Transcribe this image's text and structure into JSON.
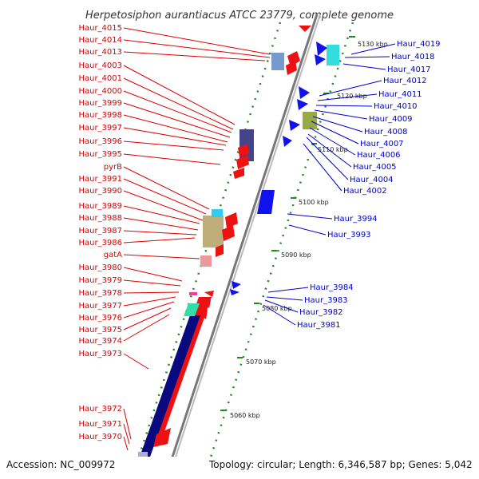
{
  "title": "Herpetosiphon aurantiacus ATCC 23779, complete genome",
  "accession": "Accession: NC_009972",
  "topology": "Topology: circular; Length: 6,346,587 bp; Genes: 5,042",
  "colors": {
    "reverse_label": "#dd0000",
    "forward_label": "#0000cc",
    "reverse_arrow": "#ee1111",
    "forward_arrow": "#1111ee",
    "ticks": "#228822",
    "backbone": "#888888"
  },
  "kbp_markers": [
    "5130 kbp",
    "5120 kbp",
    "5110 kbp",
    "5100 kbp",
    "5090 kbp",
    "5080 kbp",
    "5070 kbp",
    "5060 kbp"
  ],
  "left_labels": [
    "Haur_4015",
    "Haur_4014",
    "Haur_4013",
    "Haur_4003",
    "Haur_4001",
    "Haur_4000",
    "Haur_3999",
    "Haur_3998",
    "Haur_3997",
    "Haur_3996",
    "Haur_3995",
    "pyrB",
    "Haur_3991",
    "Haur_3990",
    "Haur_3989",
    "Haur_3988",
    "Haur_3987",
    "Haur_3986",
    "gatA",
    "Haur_3980",
    "Haur_3979",
    "Haur_3978",
    "Haur_3977",
    "Haur_3976",
    "Haur_3975",
    "Haur_3974",
    "Haur_3973",
    "Haur_3972",
    "Haur_3971",
    "Haur_3970"
  ],
  "right_labels": [
    "Haur_4019",
    "Haur_4018",
    "Haur_4017",
    "Haur_4012",
    "Haur_4011",
    "Haur_4010",
    "Haur_4009",
    "Haur_4008",
    "Haur_4007",
    "Haur_4006",
    "Haur_4005",
    "Haur_4004",
    "Haur_4002",
    "Haur_3994",
    "Haur_3993",
    "Haur_3984",
    "Haur_3983",
    "Haur_3982",
    "Haur_3981"
  ]
}
